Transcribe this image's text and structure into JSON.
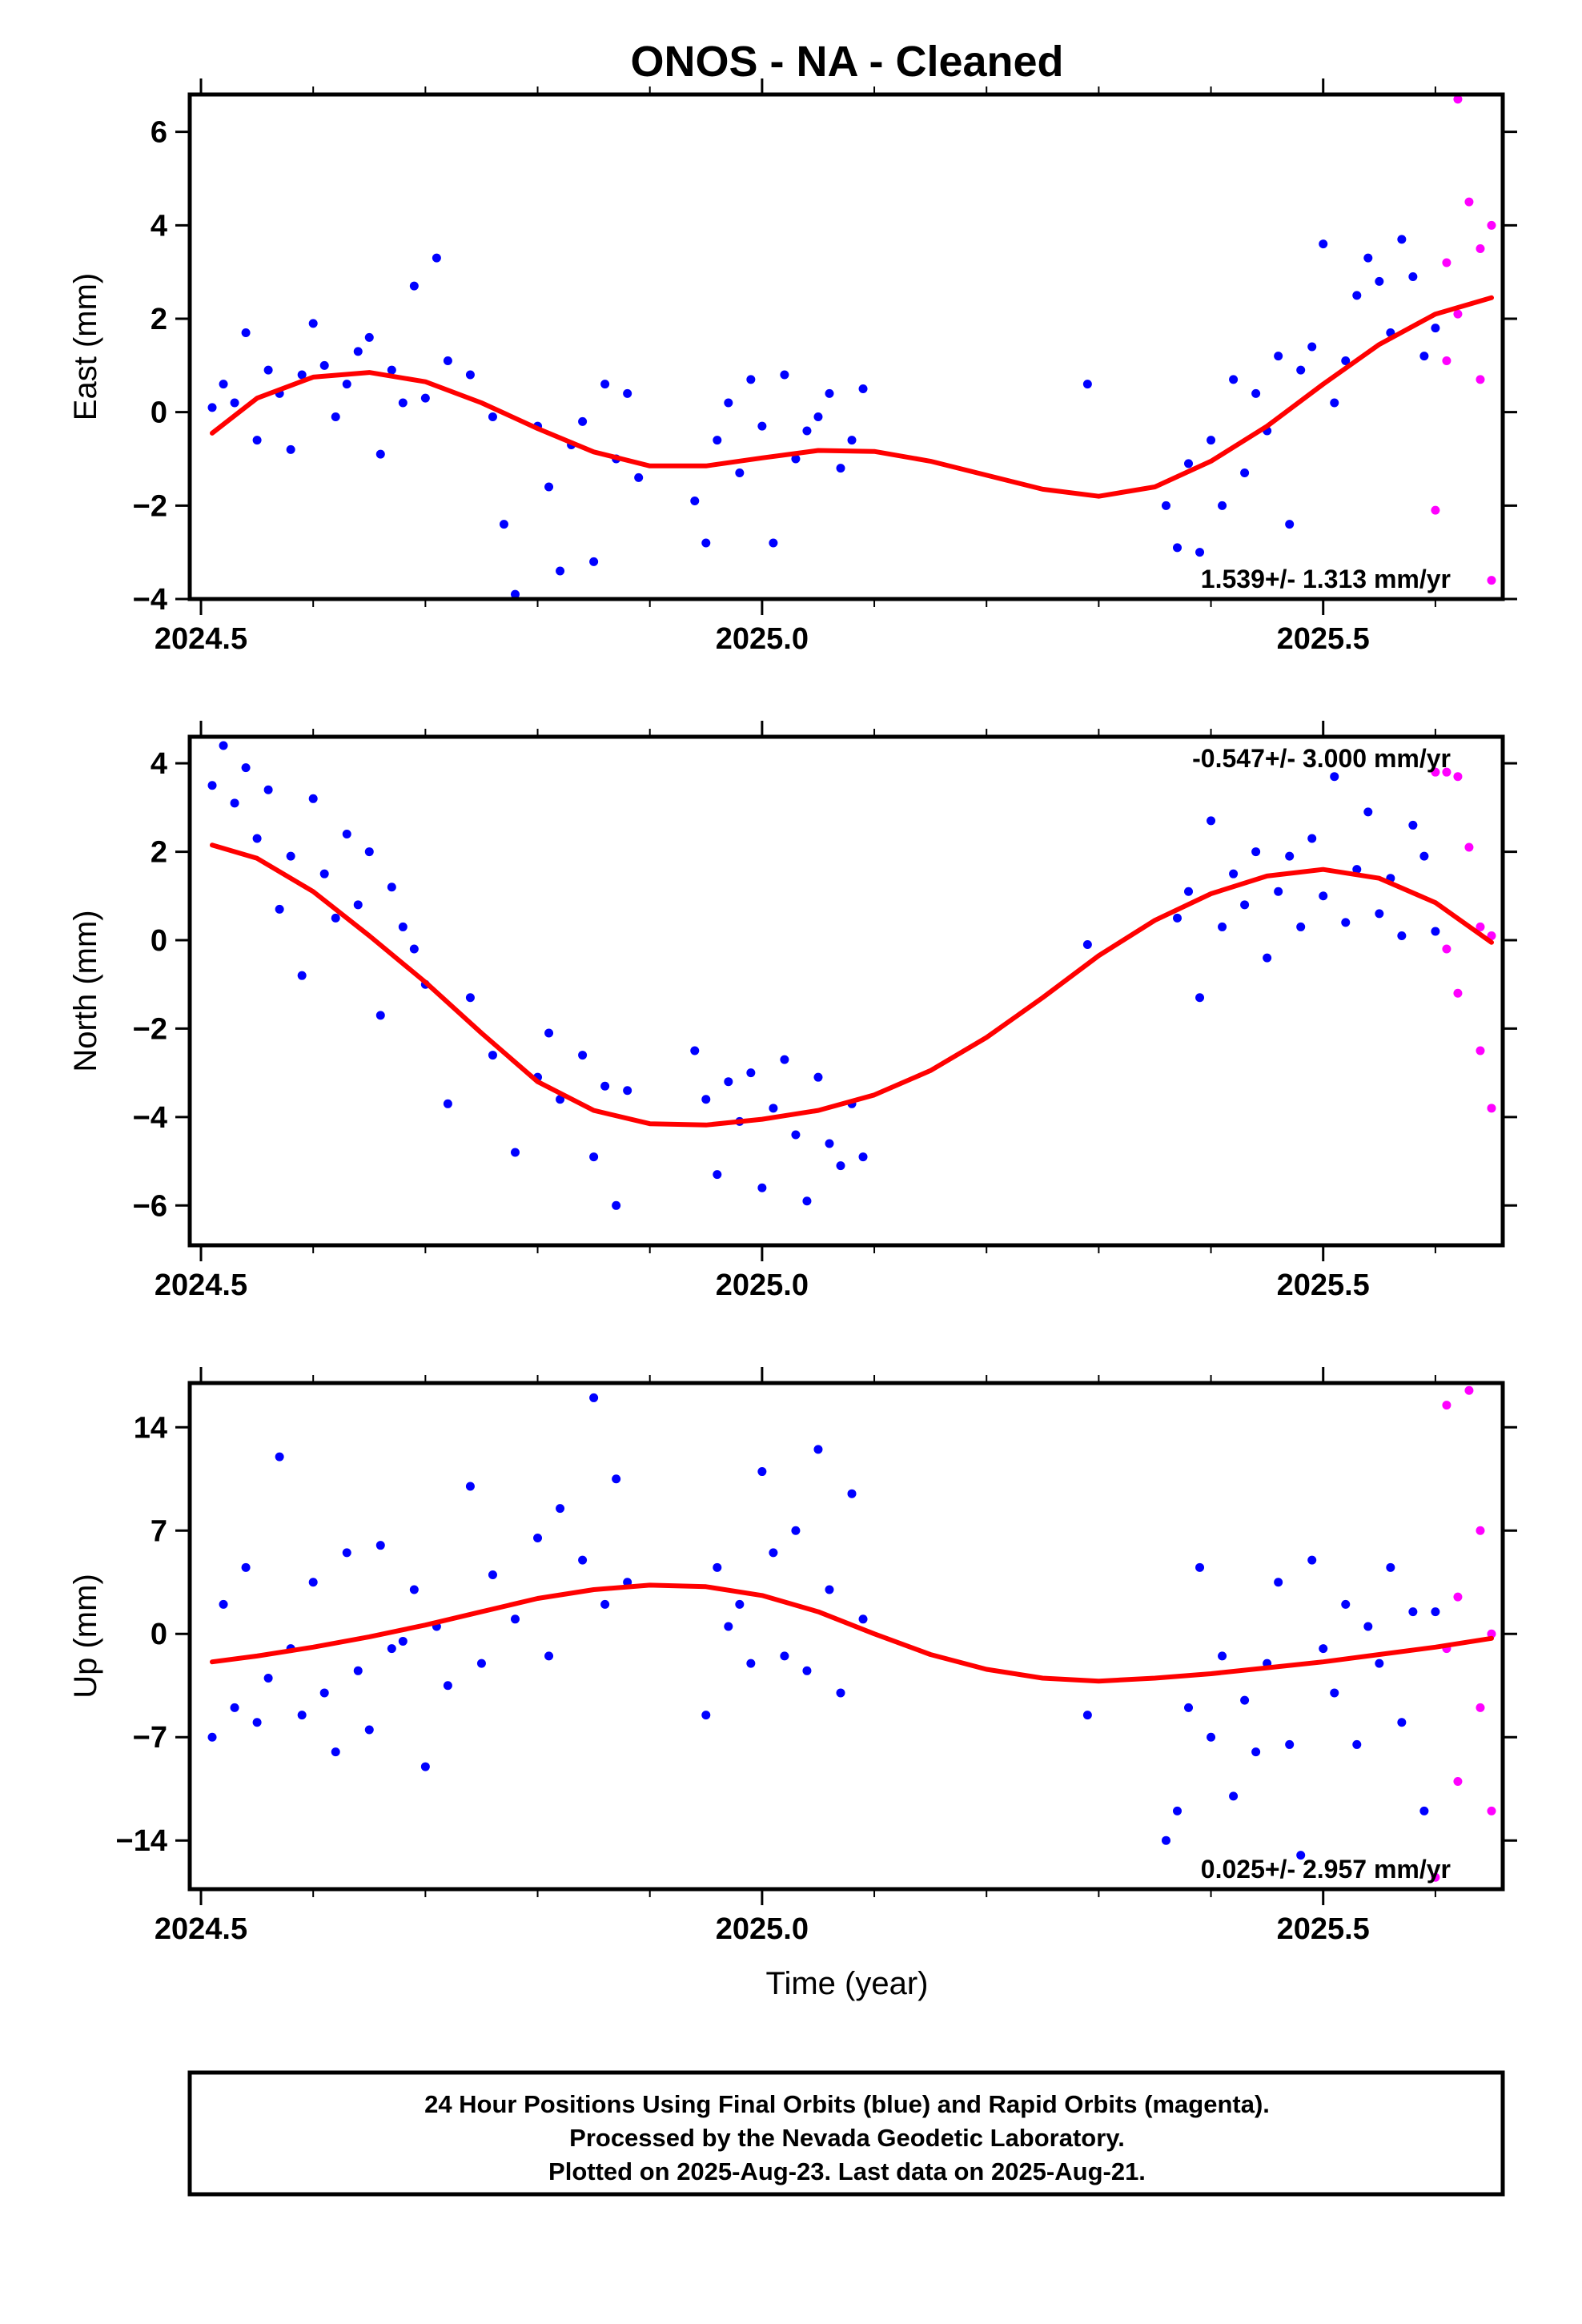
{
  "title": "ONOS  - NA - Cleaned",
  "xlabel": "Time (year)",
  "footer": [
    "24 Hour Positions Using Final Orbits (blue) and Rapid Orbits (magenta).",
    "Processed by the Nevada Geodetic Laboratory.",
    "Plotted on 2025-Aug-23. Last data on 2025-Aug-21."
  ],
  "colors": {
    "final": "#0000ff",
    "rapid": "#ff00ff",
    "fit": "#ff0000",
    "axis": "#000000"
  },
  "chart_data": [
    {
      "type": "scatter",
      "name": "east",
      "ylabel": "East (mm)",
      "rate": "1.539+/- 1.313 mm/yr",
      "xlim": [
        2024.49,
        2025.66
      ],
      "ylim": [
        -4,
        6.8
      ],
      "yticks": [
        -4,
        -2,
        0,
        2,
        4,
        6
      ],
      "ytick_labels": [
        "−4",
        "−2",
        "0",
        "2",
        "4",
        "6"
      ],
      "xticks": [
        2024.5,
        2025.0,
        2025.5
      ],
      "xtick_labels": [
        "2024.5",
        "2025.0",
        "2025.5"
      ],
      "fit": {
        "x": [
          2024.51,
          2024.55,
          2024.6,
          2024.65,
          2024.7,
          2024.75,
          2024.8,
          2024.85,
          2024.9,
          2024.95,
          2025.0,
          2025.05,
          2025.1,
          2025.15,
          2025.2,
          2025.25,
          2025.3,
          2025.35,
          2025.4,
          2025.45,
          2025.5,
          2025.55,
          2025.6,
          2025.65
        ],
        "y": [
          -0.45,
          0.3,
          0.75,
          0.85,
          0.65,
          0.2,
          -0.35,
          -0.85,
          -1.15,
          -1.15,
          -0.98,
          -0.82,
          -0.84,
          -1.05,
          -1.35,
          -1.65,
          -1.8,
          -1.6,
          -1.05,
          -0.3,
          0.6,
          1.45,
          2.1,
          2.45
        ]
      },
      "final": {
        "x": [
          2024.51,
          2024.52,
          2024.53,
          2024.54,
          2024.55,
          2024.56,
          2024.57,
          2024.58,
          2024.59,
          2024.6,
          2024.61,
          2024.62,
          2024.63,
          2024.64,
          2024.65,
          2024.66,
          2024.67,
          2024.68,
          2024.69,
          2024.7,
          2024.71,
          2024.72,
          2024.74,
          2024.76,
          2024.77,
          2024.78,
          2024.8,
          2024.81,
          2024.82,
          2024.83,
          2024.84,
          2024.85,
          2024.86,
          2024.87,
          2024.88,
          2024.89,
          2024.94,
          2024.95,
          2024.96,
          2024.97,
          2024.98,
          2024.99,
          2025.0,
          2025.01,
          2025.02,
          2025.03,
          2025.04,
          2025.05,
          2025.06,
          2025.07,
          2025.08,
          2025.09,
          2025.29,
          2025.36,
          2025.37,
          2025.38,
          2025.39,
          2025.4,
          2025.41,
          2025.42,
          2025.43,
          2025.44,
          2025.45,
          2025.46,
          2025.47,
          2025.48,
          2025.49,
          2025.5,
          2025.51,
          2025.52,
          2025.53,
          2025.54,
          2025.55,
          2025.56,
          2025.57,
          2025.58,
          2025.59,
          2025.6
        ],
        "y": [
          0.1,
          0.6,
          0.2,
          1.7,
          -0.6,
          0.9,
          0.4,
          -0.8,
          0.8,
          1.9,
          1.0,
          -0.1,
          0.6,
          1.3,
          1.6,
          -0.9,
          0.9,
          0.2,
          2.7,
          0.3,
          3.3,
          1.1,
          0.8,
          -0.1,
          -2.4,
          -3.9,
          -0.3,
          -1.6,
          -3.4,
          -0.7,
          -0.2,
          -3.2,
          0.6,
          -1.0,
          0.4,
          -1.4,
          -1.9,
          -2.8,
          -0.6,
          0.2,
          -1.3,
          0.7,
          -0.3,
          -2.8,
          0.8,
          -1.0,
          -0.4,
          -0.1,
          0.4,
          -1.2,
          -0.6,
          0.5,
          0.6,
          -2.0,
          -2.9,
          -1.1,
          -3.0,
          -0.6,
          -2.0,
          0.7,
          -1.3,
          0.4,
          -0.4,
          1.2,
          -2.4,
          0.9,
          1.4,
          3.6,
          0.2,
          1.1,
          2.5,
          3.3,
          2.8,
          1.7,
          3.7,
          2.9,
          1.2,
          1.8
        ]
      },
      "rapid": {
        "x": [
          2025.61,
          2025.62,
          2025.63,
          2025.64,
          2025.65,
          2025.6,
          2025.61,
          2025.62,
          2025.64,
          2025.65
        ],
        "y": [
          1.1,
          6.7,
          4.5,
          3.5,
          4.0,
          -2.1,
          3.2,
          2.1,
          0.7,
          -3.6
        ]
      }
    },
    {
      "type": "scatter",
      "name": "north",
      "ylabel": "North (mm)",
      "rate": "-0.547+/- 3.000 mm/yr",
      "xlim": [
        2024.49,
        2025.66
      ],
      "ylim": [
        -6.9,
        4.6
      ],
      "yticks": [
        -6,
        -4,
        -2,
        0,
        2,
        4
      ],
      "ytick_labels": [
        "−6",
        "−4",
        "−2",
        "0",
        "2",
        "4"
      ],
      "xticks": [
        2024.5,
        2025.0,
        2025.5
      ],
      "xtick_labels": [
        "2024.5",
        "2025.0",
        "2025.5"
      ],
      "fit": {
        "x": [
          2024.51,
          2024.55,
          2024.6,
          2024.65,
          2024.7,
          2024.75,
          2024.8,
          2024.85,
          2024.9,
          2024.95,
          2025.0,
          2025.05,
          2025.1,
          2025.15,
          2025.2,
          2025.25,
          2025.3,
          2025.35,
          2025.4,
          2025.45,
          2025.5,
          2025.55,
          2025.6,
          2025.65
        ],
        "y": [
          2.15,
          1.85,
          1.1,
          0.1,
          -0.95,
          -2.1,
          -3.2,
          -3.85,
          -4.15,
          -4.18,
          -4.05,
          -3.85,
          -3.5,
          -2.95,
          -2.2,
          -1.3,
          -0.35,
          0.45,
          1.05,
          1.45,
          1.6,
          1.4,
          0.85,
          -0.05
        ]
      },
      "final": {
        "x": [
          2024.51,
          2024.52,
          2024.53,
          2024.54,
          2024.55,
          2024.56,
          2024.57,
          2024.58,
          2024.59,
          2024.6,
          2024.61,
          2024.62,
          2024.63,
          2024.64,
          2024.65,
          2024.66,
          2024.67,
          2024.68,
          2024.69,
          2024.7,
          2024.72,
          2024.74,
          2024.76,
          2024.78,
          2024.8,
          2024.81,
          2024.82,
          2024.84,
          2024.85,
          2024.86,
          2024.87,
          2024.88,
          2024.94,
          2024.95,
          2024.96,
          2024.97,
          2024.98,
          2024.99,
          2025.0,
          2025.01,
          2025.02,
          2025.03,
          2025.04,
          2025.05,
          2025.06,
          2025.07,
          2025.08,
          2025.09,
          2025.29,
          2025.37,
          2025.38,
          2025.39,
          2025.4,
          2025.41,
          2025.42,
          2025.43,
          2025.44,
          2025.45,
          2025.46,
          2025.47,
          2025.48,
          2025.49,
          2025.5,
          2025.51,
          2025.52,
          2025.53,
          2025.54,
          2025.55,
          2025.56,
          2025.57,
          2025.58,
          2025.59,
          2025.6
        ],
        "y": [
          3.5,
          4.4,
          3.1,
          3.9,
          2.3,
          3.4,
          0.7,
          1.9,
          -0.8,
          3.2,
          1.5,
          0.5,
          2.4,
          0.8,
          2.0,
          -1.7,
          1.2,
          0.3,
          -0.2,
          -1.0,
          -3.7,
          -1.3,
          -2.6,
          -4.8,
          -3.1,
          -2.1,
          -3.6,
          -2.6,
          -4.9,
          -3.3,
          -6.0,
          -3.4,
          -2.5,
          -3.6,
          -5.3,
          -3.2,
          -4.1,
          -3.0,
          -5.6,
          -3.8,
          -2.7,
          -4.4,
          -5.9,
          -3.1,
          -4.6,
          -5.1,
          -3.7,
          -4.9,
          -0.1,
          0.5,
          1.1,
          -1.3,
          2.7,
          0.3,
          1.5,
          0.8,
          2.0,
          -0.4,
          1.1,
          1.9,
          0.3,
          2.3,
          1.0,
          3.7,
          0.4,
          1.6,
          2.9,
          0.6,
          1.4,
          0.1,
          2.6,
          1.9,
          0.2
        ]
      },
      "rapid": {
        "x": [
          2025.61,
          2025.62,
          2025.63,
          2025.64,
          2025.65,
          2025.6,
          2025.61,
          2025.62,
          2025.64,
          2025.65
        ],
        "y": [
          3.8,
          3.7,
          2.1,
          0.3,
          0.1,
          3.8,
          -0.2,
          -1.2,
          -2.5,
          -3.8
        ]
      }
    },
    {
      "type": "scatter",
      "name": "up",
      "ylabel": "Up (mm)",
      "rate": "0.025+/- 2.957 mm/yr",
      "xlim": [
        2024.49,
        2025.66
      ],
      "ylim": [
        -17.3,
        17
      ],
      "yticks": [
        -14,
        -7,
        0,
        7,
        14
      ],
      "ytick_labels": [
        "−14",
        "−7",
        "0",
        "7",
        "14"
      ],
      "xticks": [
        2024.5,
        2025.0,
        2025.5
      ],
      "xtick_labels": [
        "2024.5",
        "2025.0",
        "2025.5"
      ],
      "fit": {
        "x": [
          2024.51,
          2024.55,
          2024.6,
          2024.65,
          2024.7,
          2024.75,
          2024.8,
          2024.85,
          2024.9,
          2024.95,
          2025.0,
          2025.05,
          2025.1,
          2025.15,
          2025.2,
          2025.25,
          2025.3,
          2025.35,
          2025.4,
          2025.45,
          2025.5,
          2025.55,
          2025.6,
          2025.65
        ],
        "y": [
          -1.9,
          -1.5,
          -0.9,
          -0.2,
          0.6,
          1.5,
          2.4,
          3.0,
          3.3,
          3.2,
          2.6,
          1.5,
          0.0,
          -1.4,
          -2.4,
          -3.0,
          -3.2,
          -3.0,
          -2.7,
          -2.3,
          -1.9,
          -1.4,
          -0.9,
          -0.3
        ]
      },
      "final": {
        "x": [
          2024.51,
          2024.52,
          2024.53,
          2024.54,
          2024.55,
          2024.56,
          2024.57,
          2024.58,
          2024.59,
          2024.6,
          2024.61,
          2024.62,
          2024.63,
          2024.64,
          2024.65,
          2024.66,
          2024.67,
          2024.68,
          2024.69,
          2024.7,
          2024.71,
          2024.72,
          2024.74,
          2024.75,
          2024.76,
          2024.78,
          2024.8,
          2024.81,
          2024.82,
          2024.84,
          2024.85,
          2024.86,
          2024.87,
          2024.88,
          2024.95,
          2024.96,
          2024.97,
          2024.98,
          2024.99,
          2025.0,
          2025.01,
          2025.02,
          2025.03,
          2025.04,
          2025.05,
          2025.06,
          2025.07,
          2025.08,
          2025.09,
          2025.29,
          2025.36,
          2025.37,
          2025.38,
          2025.39,
          2025.4,
          2025.41,
          2025.42,
          2025.43,
          2025.44,
          2025.45,
          2025.46,
          2025.47,
          2025.48,
          2025.49,
          2025.5,
          2025.51,
          2025.52,
          2025.53,
          2025.54,
          2025.55,
          2025.56,
          2025.57,
          2025.58,
          2025.59,
          2025.6
        ],
        "y": [
          -7.0,
          2.0,
          -5.0,
          4.5,
          -6.0,
          -3.0,
          12.0,
          -1.0,
          -5.5,
          3.5,
          -4.0,
          -8.0,
          5.5,
          -2.5,
          -6.5,
          6.0,
          -1.0,
          -0.5,
          3.0,
          -9.0,
          0.5,
          -3.5,
          10.0,
          -2.0,
          4.0,
          1.0,
          6.5,
          -1.5,
          8.5,
          5.0,
          16.0,
          2.0,
          10.5,
          3.5,
          -5.5,
          4.5,
          0.5,
          2.0,
          -2.0,
          11.0,
          5.5,
          -1.5,
          7.0,
          -2.5,
          12.5,
          3.0,
          -4.0,
          9.5,
          1.0,
          -5.5,
          -14.0,
          -12.0,
          -5.0,
          4.5,
          -7.0,
          -1.5,
          -11.0,
          -4.5,
          -8.0,
          -2.0,
          3.5,
          -7.5,
          -15.0,
          5.0,
          -1.0,
          -4.0,
          2.0,
          -7.5,
          0.5,
          -2.0,
          4.5,
          -6.0,
          1.5,
          -12.0,
          1.5
        ]
      },
      "rapid": {
        "x": [
          2025.61,
          2025.62,
          2025.63,
          2025.64,
          2025.65,
          2025.6,
          2025.61,
          2025.62,
          2025.64,
          2025.65
        ],
        "y": [
          15.5,
          -10.0,
          16.5,
          7.0,
          0.0,
          -16.5,
          -1.0,
          2.5,
          -5.0,
          -12.0
        ]
      }
    }
  ]
}
